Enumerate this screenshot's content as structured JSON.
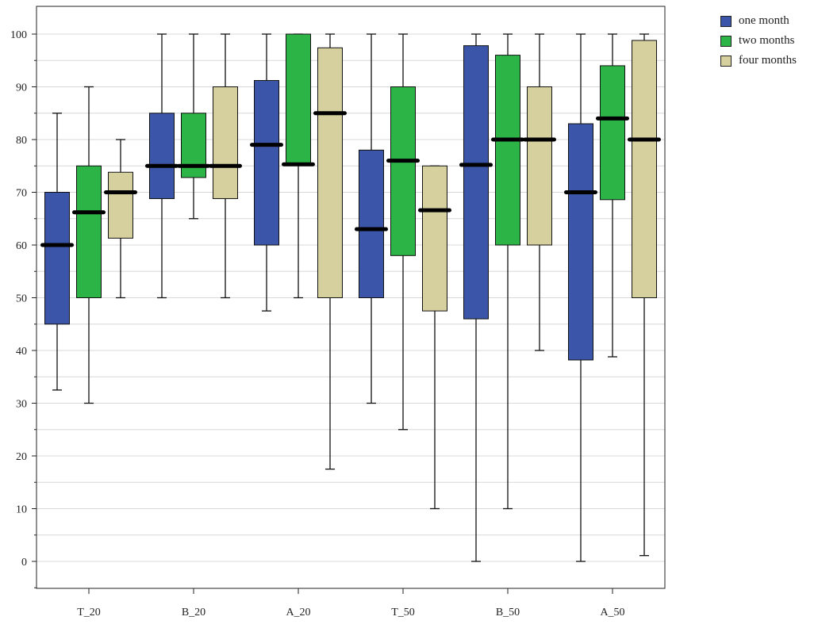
{
  "chart_data": {
    "type": "box",
    "categories": [
      "T_20",
      "B_20",
      "A_20",
      "T_50",
      "B_50",
      "A_50"
    ],
    "ylim": [
      -5,
      105
    ],
    "yticks": [
      0,
      10,
      20,
      30,
      40,
      50,
      60,
      70,
      80,
      90,
      100
    ],
    "grid": true,
    "legend_position": "top-right outside",
    "series": [
      {
        "name": "one month",
        "color": "#3b56a8",
        "boxes": [
          {
            "min": 32.5,
            "q1": 45,
            "median": 60,
            "q3": 70,
            "max": 85
          },
          {
            "min": 50,
            "q1": 68.8,
            "median": 75,
            "q3": 85,
            "max": 100
          },
          {
            "min": 47.5,
            "q1": 60,
            "median": 79,
            "q3": 91.2,
            "max": 100
          },
          {
            "min": 30,
            "q1": 50,
            "median": 63,
            "q3": 78,
            "max": 100
          },
          {
            "min": 0,
            "q1": 46,
            "median": 75.2,
            "q3": 97.8,
            "max": 100
          },
          {
            "min": 0,
            "q1": 38.2,
            "median": 70,
            "q3": 83,
            "max": 100
          }
        ]
      },
      {
        "name": "two months",
        "color": "#2db446",
        "boxes": [
          {
            "min": 30,
            "q1": 50,
            "median": 66.2,
            "q3": 75,
            "max": 90
          },
          {
            "min": 65,
            "q1": 72.8,
            "median": 75,
            "q3": 85,
            "max": 100
          },
          {
            "min": 50,
            "q1": 75.3,
            "median": 75.3,
            "q3": 100,
            "max": 100
          },
          {
            "min": 25,
            "q1": 58,
            "median": 76,
            "q3": 90,
            "max": 100
          },
          {
            "min": 10,
            "q1": 60,
            "median": 80,
            "q3": 96,
            "max": 100
          },
          {
            "min": 38.8,
            "q1": 68.6,
            "median": 84,
            "q3": 94,
            "max": 100
          }
        ]
      },
      {
        "name": "four months",
        "color": "#d6d09e",
        "boxes": [
          {
            "min": 50,
            "q1": 61.3,
            "median": 70,
            "q3": 73.8,
            "max": 80
          },
          {
            "min": 50,
            "q1": 68.8,
            "median": 75,
            "q3": 90,
            "max": 100
          },
          {
            "min": 17.5,
            "q1": 50,
            "median": 85,
            "q3": 97.4,
            "max": 100
          },
          {
            "min": 10,
            "q1": 47.5,
            "median": 66.6,
            "q3": 75,
            "max": 75
          },
          {
            "min": 40,
            "q1": 60,
            "median": 80,
            "q3": 90,
            "max": 100
          },
          {
            "min": 1.1,
            "q1": 50,
            "median": 80,
            "q3": 98.8,
            "max": 100
          }
        ]
      }
    ]
  }
}
